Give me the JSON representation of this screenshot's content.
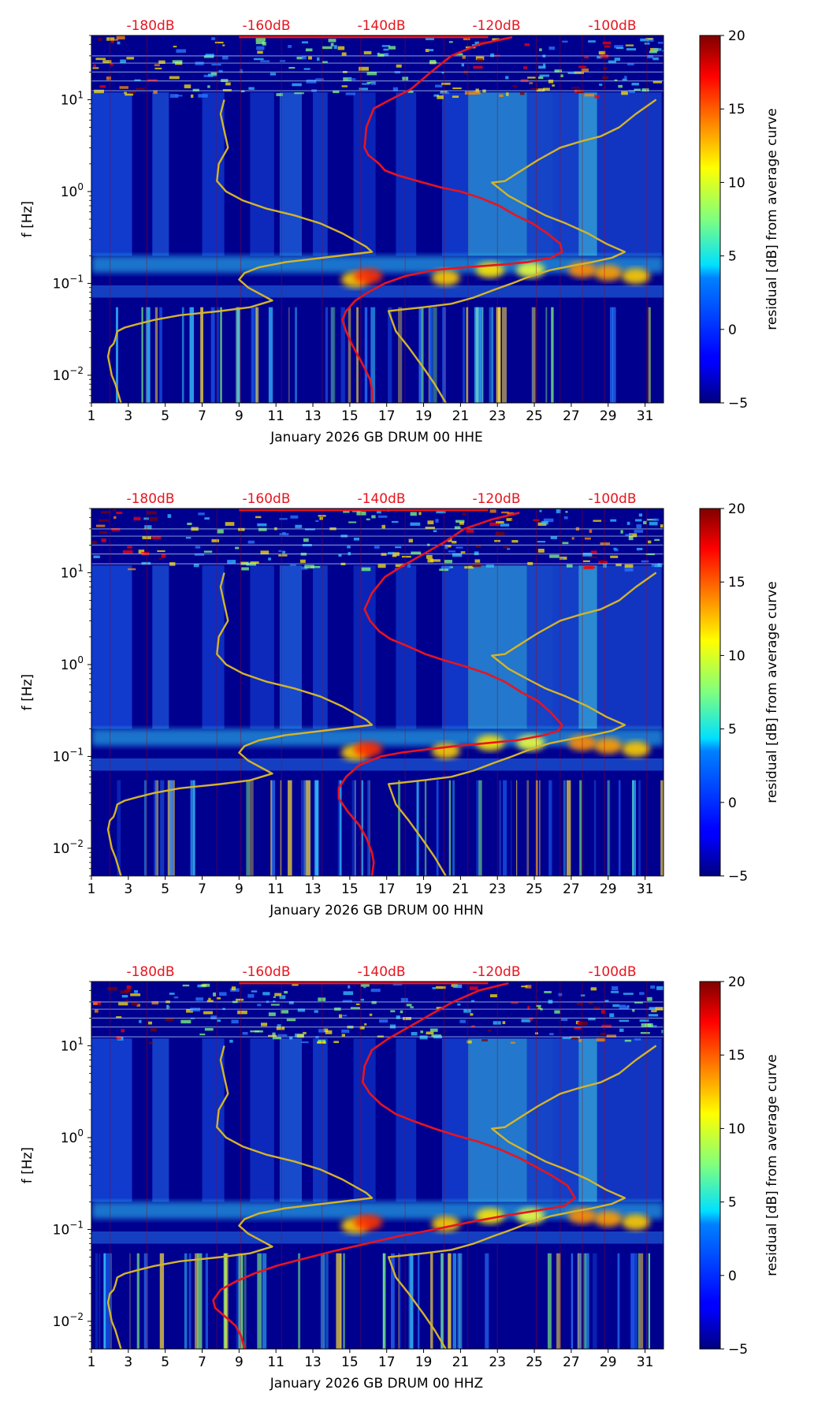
{
  "chart_data": [
    {
      "type": "heatmap",
      "title": "",
      "xlabel": "January 2026 GB DRUM 00 HHE",
      "ylabel": "f [Hz]",
      "x_ticks": [
        "1",
        "3",
        "5",
        "7",
        "9",
        "11",
        "13",
        "15",
        "17",
        "19",
        "21",
        "23",
        "25",
        "27",
        "29",
        "31"
      ],
      "xlim": [
        1,
        32
      ],
      "y_ticks": [
        {
          "base": "10",
          "exp": "1"
        },
        {
          "base": "10",
          "exp": "0"
        },
        {
          "base": "10",
          "exp": "−1"
        },
        {
          "base": "10",
          "exp": "−2"
        }
      ],
      "ylim_hz": [
        0.005,
        50
      ],
      "y_scale": "log",
      "top_axis_labels": [
        "-180dB",
        "-160dB",
        "-140dB",
        "-120dB",
        "-100dB"
      ],
      "colorbar": {
        "label": "residual [dB] from average curve",
        "ticks": [
          "20",
          "15",
          "10",
          "5",
          "0",
          "−5"
        ],
        "range": [
          -5,
          20
        ],
        "colormap": "jet"
      },
      "series": [
        {
          "color": "#e8141e",
          "x": [
            23.8,
            22.0,
            20.5,
            19.4,
            18.3,
            17.2,
            16.3,
            15.9,
            15.8,
            16.0,
            16.6,
            16.9,
            17.6,
            18.7,
            20.0,
            21.0,
            22.1,
            23.1,
            24.0,
            24.9,
            25.7,
            26.4,
            26.5,
            25.9,
            24.6,
            23.2,
            21.3,
            19.6,
            18.0,
            16.9,
            16.0,
            15.3,
            14.8,
            14.6,
            14.8,
            15.1,
            15.4,
            15.8,
            16.1,
            16.2,
            16.2
          ],
          "y": [
            48,
            40,
            30,
            20,
            13,
            10,
            8,
            5,
            3,
            2.5,
            2,
            1.7,
            1.5,
            1.3,
            1.1,
            1.0,
            0.85,
            0.7,
            0.55,
            0.45,
            0.35,
            0.27,
            0.22,
            0.19,
            0.17,
            0.16,
            0.15,
            0.14,
            0.12,
            0.1,
            0.08,
            0.065,
            0.05,
            0.04,
            0.03,
            0.022,
            0.017,
            0.012,
            0.009,
            0.007,
            0.005
          ]
        },
        {
          "color": "#d4b42a",
          "x": [
            8.2,
            8.0,
            8.4,
            7.9,
            7.8,
            8.3,
            9.2,
            10.5,
            12.0,
            13.4,
            14.6,
            15.9,
            16.2,
            13.5,
            11.5,
            10.1,
            9.3,
            9.0,
            9.5,
            10.8,
            9.6,
            8.0,
            5.8,
            4.4,
            3.5,
            2.8,
            2.4,
            2.3,
            2.2,
            2.0,
            1.9,
            2.1,
            2.3,
            2.6
          ],
          "y": [
            10,
            7,
            3,
            2,
            1.3,
            1.0,
            0.8,
            0.65,
            0.55,
            0.45,
            0.35,
            0.25,
            0.22,
            0.19,
            0.17,
            0.15,
            0.13,
            0.11,
            0.09,
            0.065,
            0.055,
            0.05,
            0.045,
            0.04,
            0.036,
            0.033,
            0.03,
            0.025,
            0.022,
            0.02,
            0.016,
            0.01,
            0.008,
            0.005
          ]
        },
        {
          "color": "#d4b42a",
          "x": [
            31.6,
            30.5,
            29.6,
            28.6,
            27.5,
            26.4,
            25.2,
            24.1,
            23.4,
            22.7,
            23.6,
            24.6,
            25.6,
            26.7,
            27.9,
            28.9,
            29.9,
            29.2,
            28.1,
            27.0,
            25.9,
            24.8,
            23.8,
            22.8,
            21.7,
            20.5,
            19.0,
            17.1,
            17.5,
            18.2,
            19.0,
            19.6,
            20.2
          ],
          "y": [
            10,
            7,
            5,
            4,
            3.5,
            3.0,
            2.2,
            1.6,
            1.3,
            1.25,
            0.9,
            0.7,
            0.55,
            0.45,
            0.35,
            0.27,
            0.22,
            0.19,
            0.17,
            0.155,
            0.14,
            0.12,
            0.1,
            0.085,
            0.07,
            0.06,
            0.055,
            0.05,
            0.03,
            0.02,
            0.012,
            0.008,
            0.005
          ]
        }
      ]
    },
    {
      "type": "heatmap",
      "title": "",
      "xlabel": "January 2026 GB DRUM 00 HHN",
      "ylabel": "f [Hz]",
      "x_ticks": [
        "1",
        "3",
        "5",
        "7",
        "9",
        "11",
        "13",
        "15",
        "17",
        "19",
        "21",
        "23",
        "25",
        "27",
        "29",
        "31"
      ],
      "xlim": [
        1,
        32
      ],
      "y_ticks": [
        {
          "base": "10",
          "exp": "1"
        },
        {
          "base": "10",
          "exp": "0"
        },
        {
          "base": "10",
          "exp": "−1"
        },
        {
          "base": "10",
          "exp": "−2"
        }
      ],
      "ylim_hz": [
        0.005,
        50
      ],
      "y_scale": "log",
      "top_axis_labels": [
        "-180dB",
        "-160dB",
        "-140dB",
        "-120dB",
        "-100dB"
      ],
      "colorbar": {
        "label": "residual [dB] from average curve",
        "ticks": [
          "20",
          "15",
          "10",
          "5",
          "0",
          "−5"
        ],
        "range": [
          -5,
          20
        ],
        "colormap": "jet"
      },
      "series": [
        {
          "color": "#e8141e",
          "x": [
            24.2,
            22.7,
            21.2,
            20.2,
            19.0,
            17.9,
            16.9,
            16.2,
            15.8,
            16.1,
            16.6,
            17.2,
            18.1,
            19.1,
            20.2,
            21.3,
            22.4,
            23.4,
            24.3,
            25.2,
            25.9,
            26.5,
            26.3,
            25.5,
            24.1,
            22.5,
            20.8,
            19.3,
            17.8,
            16.7,
            15.5,
            14.8,
            14.4,
            14.4,
            14.9,
            15.5,
            15.9,
            16.2,
            16.3,
            16.2
          ],
          "y": [
            45,
            38,
            30,
            22,
            16,
            12,
            9,
            6,
            4,
            3,
            2.3,
            1.9,
            1.6,
            1.3,
            1.1,
            0.95,
            0.8,
            0.65,
            0.5,
            0.4,
            0.3,
            0.22,
            0.19,
            0.17,
            0.15,
            0.14,
            0.13,
            0.12,
            0.11,
            0.1,
            0.08,
            0.06,
            0.045,
            0.035,
            0.025,
            0.018,
            0.013,
            0.009,
            0.007,
            0.005
          ]
        },
        {
          "color": "#d4b42a",
          "x": [
            8.2,
            8.0,
            8.4,
            7.9,
            7.8,
            8.3,
            9.2,
            10.5,
            12.0,
            13.4,
            14.6,
            15.9,
            16.2,
            13.5,
            11.5,
            10.1,
            9.3,
            9.0,
            9.5,
            10.8,
            9.6,
            8.0,
            5.8,
            4.4,
            3.5,
            2.8,
            2.4,
            2.3,
            2.2,
            2.0,
            1.9,
            2.1,
            2.3,
            2.6
          ],
          "y": [
            10,
            7,
            3,
            2,
            1.3,
            1.0,
            0.8,
            0.65,
            0.55,
            0.45,
            0.35,
            0.25,
            0.22,
            0.19,
            0.17,
            0.15,
            0.13,
            0.11,
            0.09,
            0.065,
            0.055,
            0.05,
            0.045,
            0.04,
            0.036,
            0.033,
            0.03,
            0.025,
            0.022,
            0.02,
            0.016,
            0.01,
            0.008,
            0.005
          ]
        },
        {
          "color": "#d4b42a",
          "x": [
            31.6,
            30.5,
            29.6,
            28.6,
            27.5,
            26.4,
            25.2,
            24.1,
            23.4,
            22.7,
            23.6,
            24.6,
            25.6,
            26.7,
            27.9,
            28.9,
            29.9,
            29.2,
            28.1,
            27.0,
            25.9,
            24.8,
            23.8,
            22.8,
            21.7,
            20.5,
            19.0,
            17.1,
            17.5,
            18.2,
            19.0,
            19.6,
            20.2
          ],
          "y": [
            10,
            7,
            5,
            4,
            3.5,
            3.0,
            2.2,
            1.6,
            1.3,
            1.25,
            0.9,
            0.7,
            0.55,
            0.45,
            0.35,
            0.27,
            0.22,
            0.19,
            0.17,
            0.155,
            0.14,
            0.12,
            0.1,
            0.085,
            0.07,
            0.06,
            0.055,
            0.05,
            0.03,
            0.02,
            0.012,
            0.008,
            0.005
          ]
        }
      ]
    },
    {
      "type": "heatmap",
      "title": "",
      "xlabel": "January 2026 GB DRUM 00 HHZ",
      "ylabel": "f [Hz]",
      "x_ticks": [
        "1",
        "3",
        "5",
        "7",
        "9",
        "11",
        "13",
        "15",
        "17",
        "19",
        "21",
        "23",
        "25",
        "27",
        "29",
        "31"
      ],
      "xlim": [
        1,
        32
      ],
      "y_ticks": [
        {
          "base": "10",
          "exp": "1"
        },
        {
          "base": "10",
          "exp": "0"
        },
        {
          "base": "10",
          "exp": "−1"
        },
        {
          "base": "10",
          "exp": "−2"
        }
      ],
      "ylim_hz": [
        0.005,
        50
      ],
      "y_scale": "log",
      "top_axis_labels": [
        "-180dB",
        "-160dB",
        "-140dB",
        "-120dB",
        "-100dB"
      ],
      "colorbar": {
        "label": "residual [dB] from average curve",
        "ticks": [
          "20",
          "15",
          "10",
          "5",
          "0",
          "−5"
        ],
        "range": [
          -5,
          20
        ],
        "colormap": "jet"
      },
      "series": [
        {
          "color": "#e8141e",
          "x": [
            23.6,
            22.0,
            20.6,
            19.4,
            18.2,
            17.1,
            16.2,
            15.8,
            15.7,
            16.1,
            16.7,
            17.5,
            18.5,
            19.6,
            20.8,
            22.0,
            23.1,
            24.2,
            25.1,
            26.0,
            26.8,
            27.2,
            26.6,
            25.1,
            23.3,
            21.5,
            19.6,
            17.7,
            15.9,
            14.1,
            12.5,
            11.0,
            9.8,
            8.8,
            8.0,
            7.6,
            7.7,
            8.3,
            8.8,
            9.1,
            9.3
          ],
          "y": [
            48,
            40,
            30,
            22,
            16,
            12,
            9,
            6,
            4,
            3,
            2.3,
            1.8,
            1.5,
            1.25,
            1.05,
            0.9,
            0.75,
            0.6,
            0.48,
            0.38,
            0.3,
            0.22,
            0.18,
            0.16,
            0.14,
            0.12,
            0.1,
            0.085,
            0.07,
            0.058,
            0.048,
            0.04,
            0.033,
            0.027,
            0.022,
            0.017,
            0.014,
            0.011,
            0.009,
            0.007,
            0.005
          ]
        },
        {
          "color": "#d4b42a",
          "x": [
            8.2,
            8.0,
            8.4,
            7.9,
            7.8,
            8.3,
            9.2,
            10.5,
            12.0,
            13.4,
            14.6,
            15.9,
            16.2,
            13.5,
            11.5,
            10.1,
            9.3,
            9.0,
            9.5,
            10.8,
            9.6,
            8.0,
            5.8,
            4.4,
            3.5,
            2.8,
            2.4,
            2.3,
            2.2,
            2.0,
            1.9,
            2.1,
            2.3,
            2.6
          ],
          "y": [
            10,
            7,
            3,
            2,
            1.3,
            1.0,
            0.8,
            0.65,
            0.55,
            0.45,
            0.35,
            0.25,
            0.22,
            0.19,
            0.17,
            0.15,
            0.13,
            0.11,
            0.09,
            0.065,
            0.055,
            0.05,
            0.045,
            0.04,
            0.036,
            0.033,
            0.03,
            0.025,
            0.022,
            0.02,
            0.016,
            0.01,
            0.008,
            0.005
          ]
        },
        {
          "color": "#d4b42a",
          "x": [
            31.6,
            30.5,
            29.6,
            28.6,
            27.5,
            26.4,
            25.2,
            24.1,
            23.4,
            22.7,
            23.6,
            24.6,
            25.6,
            26.7,
            27.9,
            28.9,
            29.9,
            29.2,
            28.1,
            27.0,
            25.9,
            24.8,
            23.8,
            22.8,
            21.7,
            20.5,
            19.0,
            17.1,
            17.5,
            18.2,
            19.0,
            19.6,
            20.2
          ],
          "y": [
            10,
            7,
            5,
            4,
            3.5,
            3.0,
            2.2,
            1.6,
            1.3,
            1.25,
            0.9,
            0.7,
            0.55,
            0.45,
            0.35,
            0.27,
            0.22,
            0.19,
            0.17,
            0.155,
            0.14,
            0.12,
            0.1,
            0.085,
            0.07,
            0.06,
            0.055,
            0.05,
            0.03,
            0.02,
            0.012,
            0.008,
            0.005
          ]
        }
      ]
    }
  ]
}
